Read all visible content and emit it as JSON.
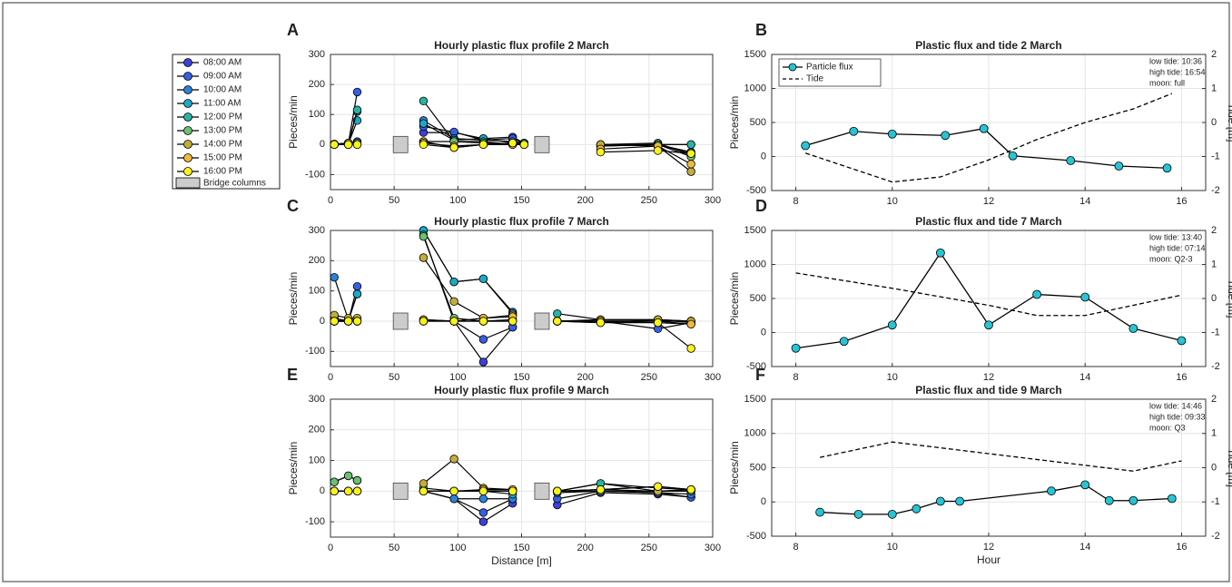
{
  "legend": {
    "series": [
      {
        "name": "08:00 AM",
        "color": "#4040d8"
      },
      {
        "name": "09:00 AM",
        "color": "#3a5ee0"
      },
      {
        "name": "10:00 AM",
        "color": "#2b82da"
      },
      {
        "name": "11:00 AM",
        "color": "#1ea8c8"
      },
      {
        "name": "12:00 PM",
        "color": "#2ab3a0"
      },
      {
        "name": "13:00 PM",
        "color": "#6cc070"
      },
      {
        "name": "14:00 PM",
        "color": "#c3ad3c"
      },
      {
        "name": "15:00 PM",
        "color": "#f0b93a"
      },
      {
        "name": "16:00 PM",
        "color": "#f8f41a"
      }
    ],
    "bridge_label": "Bridge columns",
    "bridge_color": "#cccccc"
  },
  "chart_data": [
    {
      "type": "profile",
      "panel_label": "A",
      "title": "Hourly plastic flux profile 2 March",
      "ylabel": "Pieces/min",
      "x": [
        3,
        14,
        21,
        73,
        97,
        120,
        143,
        152,
        212,
        257,
        283
      ],
      "bridge_columns": [
        55,
        166
      ],
      "series": [
        {
          "values": [
            2,
            5,
            10,
            40,
            40,
            20,
            25,
            5,
            0,
            0,
            -25
          ]
        },
        {
          "values": [
            0,
            3,
            175,
            60,
            42,
            15,
            20,
            5,
            -2,
            0,
            -30
          ]
        },
        {
          "values": [
            0,
            5,
            110,
            80,
            20,
            15,
            10,
            5,
            -5,
            0,
            0
          ]
        },
        {
          "values": [
            0,
            2,
            80,
            70,
            15,
            20,
            5,
            5,
            0,
            5,
            -35
          ]
        },
        {
          "values": [
            0,
            0,
            115,
            145,
            10,
            10,
            0,
            0,
            0,
            0,
            0
          ]
        },
        {
          "values": [
            0,
            0,
            5,
            10,
            10,
            5,
            0,
            0,
            -5,
            0,
            -40
          ]
        },
        {
          "values": [
            0,
            5,
            0,
            10,
            -10,
            0,
            0,
            0,
            0,
            -5,
            -90
          ]
        },
        {
          "values": [
            0,
            0,
            0,
            5,
            -5,
            0,
            0,
            0,
            -15,
            -5,
            -65
          ]
        },
        {
          "values": [
            0,
            0,
            0,
            0,
            -10,
            0,
            5,
            0,
            -25,
            -20,
            -30
          ]
        }
      ],
      "xlim": [
        0,
        300
      ],
      "xticks": [
        0,
        50,
        100,
        150,
        200,
        250,
        300
      ],
      "ylim": [
        -150,
        300
      ],
      "yticks": [
        -100,
        0,
        100,
        200,
        300
      ],
      "grid": true
    },
    {
      "type": "tide",
      "panel_label": "B",
      "title": "Plastic flux and tide 2 March",
      "ylabel": "Pieces/min",
      "y2label": "Tide [m]",
      "annotations": [
        "low tide: 10:36",
        "high tide: 16:54",
        "moon: full"
      ],
      "legend": "upper left",
      "series": [
        {
          "name": "Particle flux",
          "color": "#27c4d4",
          "x": [
            8.2,
            9.2,
            10,
            11.1,
            11.9,
            12.5,
            13.7,
            14.7,
            15.7
          ],
          "values": [
            160,
            370,
            330,
            310,
            410,
            10,
            -60,
            -140,
            -170
          ]
        },
        {
          "name": "Tide",
          "color": "#000000",
          "axis": "y2",
          "dashed": true,
          "x": [
            8.2,
            10,
            11,
            12,
            13,
            14,
            15,
            15.8
          ],
          "values": [
            -0.9,
            -1.75,
            -1.6,
            -1.1,
            -0.5,
            0,
            0.4,
            0.85
          ]
        }
      ],
      "xlim": [
        7.5,
        16.5
      ],
      "xticks": [
        8,
        10,
        12,
        14,
        16
      ],
      "ylim": [
        -500,
        1500
      ],
      "yticks": [
        -500,
        0,
        500,
        1000,
        1500
      ],
      "y2lim": [
        -2,
        2
      ],
      "y2ticks": [
        -2,
        -1,
        0,
        1,
        2
      ],
      "grid": true
    },
    {
      "type": "profile",
      "panel_label": "C",
      "title": "Hourly plastic flux profile 7 March",
      "ylabel": "Pieces/min",
      "x": [
        3,
        14,
        21,
        73,
        97,
        120,
        143,
        178,
        212,
        257,
        283
      ],
      "bridge_columns": [
        55,
        166
      ],
      "series": [
        {
          "values": [
            0,
            5,
            0,
            5,
            0,
            -135,
            -20,
            0,
            0,
            0,
            -10
          ]
        },
        {
          "values": [
            0,
            0,
            115,
            0,
            0,
            -60,
            -20,
            0,
            0,
            -25,
            -5
          ]
        },
        {
          "values": [
            145,
            5,
            90,
            300,
            130,
            140,
            30,
            0,
            0,
            0,
            0
          ]
        },
        {
          "values": [
            0,
            0,
            90,
            300,
            130,
            140,
            25,
            0,
            -5,
            5,
            0
          ]
        },
        {
          "values": [
            10,
            0,
            5,
            285,
            0,
            0,
            0,
            25,
            5,
            5,
            -5
          ]
        },
        {
          "values": [
            0,
            0,
            0,
            280,
            10,
            0,
            5,
            0,
            0,
            0,
            0
          ]
        },
        {
          "values": [
            20,
            10,
            10,
            210,
            65,
            10,
            20,
            0,
            5,
            5,
            0
          ]
        },
        {
          "values": [
            0,
            0,
            0,
            5,
            0,
            10,
            15,
            0,
            0,
            -5,
            -10
          ]
        },
        {
          "values": [
            0,
            0,
            0,
            0,
            0,
            0,
            0,
            0,
            -5,
            -5,
            -90
          ]
        }
      ],
      "xlim": [
        0,
        300
      ],
      "xticks": [
        0,
        50,
        100,
        150,
        200,
        250,
        300
      ],
      "ylim": [
        -150,
        300
      ],
      "yticks": [
        -100,
        0,
        100,
        200,
        300
      ],
      "grid": true
    },
    {
      "type": "tide",
      "panel_label": "D",
      "title": "Plastic flux and tide 7 March",
      "ylabel": "Pieces/min",
      "y2label": "Tide [m]",
      "annotations": [
        "low tide: 13:40",
        "high tide: 07:14",
        "moon: Q2-3"
      ],
      "series": [
        {
          "color": "#27c4d4",
          "x": [
            8,
            9,
            10,
            11,
            12,
            13,
            14,
            15,
            16
          ],
          "values": [
            -230,
            -130,
            110,
            1170,
            110,
            560,
            520,
            60,
            -120
          ]
        },
        {
          "color": "#000000",
          "axis": "y2",
          "dashed": true,
          "x": [
            8,
            10,
            12,
            13,
            14,
            15,
            16
          ],
          "values": [
            0.75,
            0.3,
            -0.2,
            -0.5,
            -0.5,
            -0.2,
            0.1
          ]
        }
      ],
      "xlim": [
        7.5,
        16.5
      ],
      "xticks": [
        8,
        10,
        12,
        14,
        16
      ],
      "ylim": [
        -500,
        1500
      ],
      "yticks": [
        -500,
        0,
        500,
        1000,
        1500
      ],
      "y2lim": [
        -2,
        2
      ],
      "y2ticks": [
        -2,
        -1,
        0,
        1,
        2
      ],
      "grid": true
    },
    {
      "type": "profile",
      "panel_label": "E",
      "title": "Hourly plastic flux profile 9 March",
      "ylabel": "Pieces/min",
      "xlabel": "Distance [m]",
      "x": [
        3,
        14,
        21,
        73,
        97,
        120,
        143,
        178,
        212,
        257,
        283
      ],
      "bridge_columns": [
        55,
        166
      ],
      "series": [
        {
          "values": [
            0,
            0,
            0,
            0,
            -25,
            -100,
            -40,
            -45,
            -5,
            -10,
            -20
          ]
        },
        {
          "values": [
            0,
            0,
            0,
            0,
            -25,
            -70,
            -25,
            -25,
            0,
            -5,
            -20
          ]
        },
        {
          "values": [
            0,
            0,
            0,
            0,
            -25,
            -25,
            -25,
            -5,
            0,
            -5,
            -10
          ]
        },
        {
          "values": [
            0,
            0,
            0,
            0,
            0,
            0,
            -10,
            0,
            25,
            0,
            0
          ]
        },
        {
          "values": [
            30,
            50,
            35,
            10,
            0,
            0,
            0,
            0,
            25,
            10,
            5
          ]
        },
        {
          "values": [
            30,
            50,
            35,
            0,
            0,
            0,
            0,
            0,
            0,
            0,
            0
          ]
        },
        {
          "values": [
            0,
            0,
            0,
            25,
            105,
            10,
            5,
            0,
            5,
            0,
            5
          ]
        },
        {
          "values": [
            0,
            0,
            0,
            0,
            0,
            5,
            5,
            0,
            5,
            15,
            5
          ]
        },
        {
          "values": [
            0,
            0,
            0,
            0,
            0,
            0,
            0,
            0,
            5,
            15,
            5
          ]
        }
      ],
      "xlim": [
        0,
        300
      ],
      "xticks": [
        0,
        50,
        100,
        150,
        200,
        250,
        300
      ],
      "ylim": [
        -150,
        300
      ],
      "yticks": [
        -100,
        0,
        100,
        200,
        300
      ],
      "grid": true
    },
    {
      "type": "tide",
      "panel_label": "F",
      "title": "Plastic flux and tide 9 March",
      "ylabel": "Pieces/min",
      "y2label": "Tide [m]",
      "xlabel": "Hour",
      "annotations": [
        "low tide: 14:46",
        "high tide: 09:33",
        "moon: Q3"
      ],
      "series": [
        {
          "color": "#27c4d4",
          "x": [
            8.5,
            9.3,
            10,
            10.5,
            11,
            11.4,
            13.3,
            14,
            14.5,
            15,
            15.8
          ],
          "values": [
            -150,
            -180,
            -180,
            -100,
            10,
            10,
            160,
            250,
            20,
            20,
            50
          ]
        },
        {
          "color": "#000000",
          "axis": "y2",
          "dashed": true,
          "x": [
            8.5,
            10,
            15,
            16
          ],
          "values": [
            0.3,
            0.75,
            -0.1,
            0.2
          ]
        }
      ],
      "xlim": [
        7.5,
        16.5
      ],
      "xticks": [
        8,
        10,
        12,
        14,
        16
      ],
      "ylim": [
        -500,
        1500
      ],
      "yticks": [
        -500,
        0,
        500,
        1000,
        1500
      ],
      "y2lim": [
        -2,
        2
      ],
      "y2ticks": [
        -2,
        -1,
        0,
        1,
        2
      ],
      "grid": true
    }
  ]
}
